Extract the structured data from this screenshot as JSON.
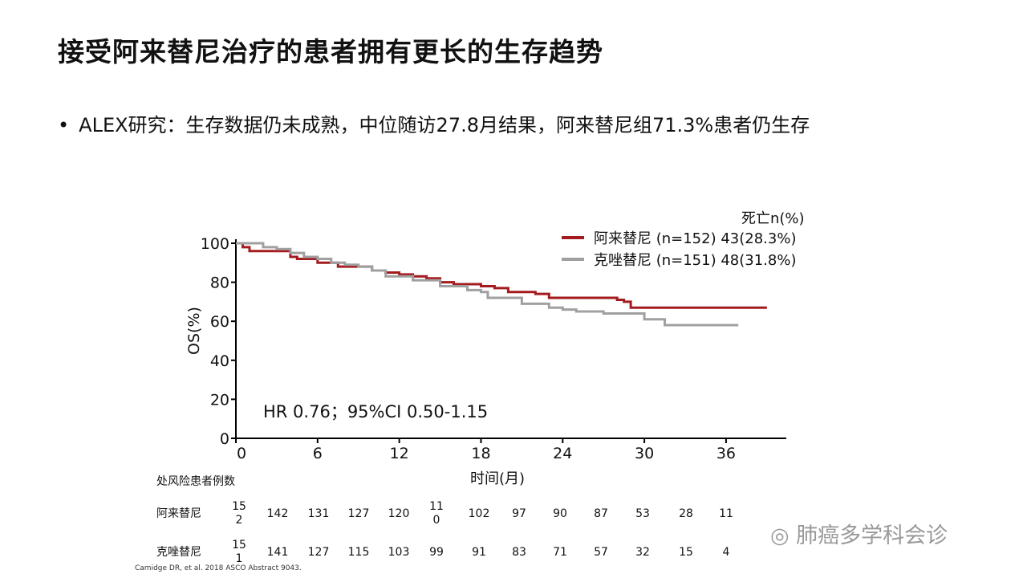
{
  "title": "接受阿来替尼治疗的患者拥有更长的生存趋势",
  "bullet": "ALEX研究：生存数据仍未成熟，中位随访27.8月结果，阿来替尼组71.3%患者仍生存",
  "citation": "Camidge DR, et al. 2018 ASCO Abstract 9043.",
  "watermark": "肺癌多学科会诊",
  "chart_data": {
    "type": "line",
    "step": true,
    "xlabel": "时间(月)",
    "ylabel": "OS(%)",
    "xlim": [
      0,
      40
    ],
    "ylim": [
      0,
      100
    ],
    "xticks": [
      0,
      6,
      12,
      18,
      24,
      30,
      36
    ],
    "yticks": [
      0,
      20,
      40,
      60,
      80,
      100
    ],
    "legend_header": "死亡n(%)",
    "annotation": "HR 0.76；95%CI 0.50-1.15",
    "series": [
      {
        "name": "阿来替尼 (n=152) 43(28.3%)",
        "color": "#a31b1f",
        "x": [
          0,
          0.5,
          1,
          4,
          4.5,
          6,
          7.5,
          10,
          11,
          12,
          13,
          14,
          15,
          16,
          18,
          19,
          20,
          22,
          23,
          28,
          28.5,
          29,
          39
        ],
        "y": [
          100,
          98,
          96,
          93,
          92,
          90,
          88,
          86,
          85,
          84,
          83,
          82,
          80,
          79,
          78,
          77,
          75,
          74,
          72,
          71,
          70,
          67,
          67
        ]
      },
      {
        "name": "克唑替尼 (n=151) 48(31.8%)",
        "color": "#a0a0a0",
        "x": [
          0,
          2,
          3,
          4,
          5,
          6,
          7,
          8,
          9,
          10,
          11,
          13,
          15,
          17,
          18,
          18.5,
          21,
          23,
          24,
          25,
          27,
          30,
          31.5,
          36.9
        ],
        "y": [
          100,
          98,
          97,
          95,
          93,
          92,
          90,
          89,
          88,
          86,
          83,
          81,
          78,
          76,
          75,
          72,
          69,
          67,
          66,
          65,
          64,
          61,
          58,
          58
        ]
      }
    ],
    "risk_table": {
      "header": "处风险患者例数",
      "rows": [
        {
          "label": "阿来替尼",
          "values": [
            "152",
            "142",
            "131",
            "127",
            "120",
            "110",
            "102",
            "97",
            "90",
            "87",
            "53",
            "28",
            "11"
          ]
        },
        {
          "label": "克唑替尼",
          "values": [
            "151",
            "141",
            "127",
            "115",
            "103",
            "99",
            "91",
            "83",
            "71",
            "57",
            "32",
            "15",
            "4"
          ]
        }
      ]
    }
  }
}
